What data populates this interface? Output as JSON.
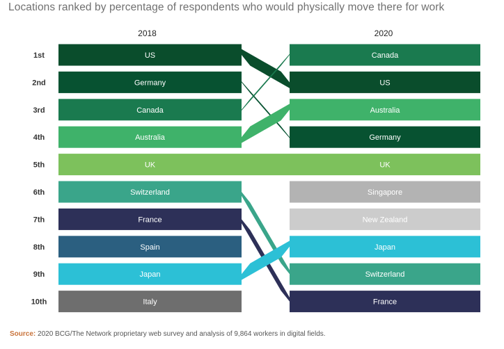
{
  "title": "Locations ranked by percentage of respondents who would physically move there for work",
  "source_label": "Source:",
  "source_text": "2020 BCG/The Network proprietary web survey and analysis of 9,864 workers in digital fields.",
  "chart_data": {
    "type": "bump",
    "columns": [
      "2018",
      "2020"
    ],
    "rank_labels": [
      "1st",
      "2nd",
      "3rd",
      "4th",
      "5th",
      "6th",
      "7th",
      "8th",
      "9th",
      "10th"
    ],
    "series": [
      {
        "name": "US",
        "rank_2018": 1,
        "rank_2020": 2,
        "color": "#0a4d2c"
      },
      {
        "name": "Germany",
        "rank_2018": 2,
        "rank_2020": 4,
        "color": "#075231"
      },
      {
        "name": "Canada",
        "rank_2018": 3,
        "rank_2020": 1,
        "color": "#1a7a4f"
      },
      {
        "name": "Australia",
        "rank_2018": 4,
        "rank_2020": 3,
        "color": "#3fb26a"
      },
      {
        "name": "UK",
        "rank_2018": 5,
        "rank_2020": 5,
        "color": "#7dc15c"
      },
      {
        "name": "Switzerland",
        "rank_2018": 6,
        "rank_2020": 9,
        "color": "#3aa58a"
      },
      {
        "name": "France",
        "rank_2018": 7,
        "rank_2020": 10,
        "color": "#2d3058"
      },
      {
        "name": "Spain",
        "rank_2018": 8,
        "rank_2020": null,
        "color": "#2b5f80"
      },
      {
        "name": "Japan",
        "rank_2018": 9,
        "rank_2020": 8,
        "color": "#2cc0d6"
      },
      {
        "name": "Italy",
        "rank_2018": 10,
        "rank_2020": null,
        "color": "#6e6e6e"
      },
      {
        "name": "Singapore",
        "rank_2018": null,
        "rank_2020": 6,
        "color": "#b3b3b3"
      },
      {
        "name": "New Zealand",
        "rank_2018": null,
        "rank_2020": 7,
        "color": "#cccccc"
      }
    ]
  }
}
